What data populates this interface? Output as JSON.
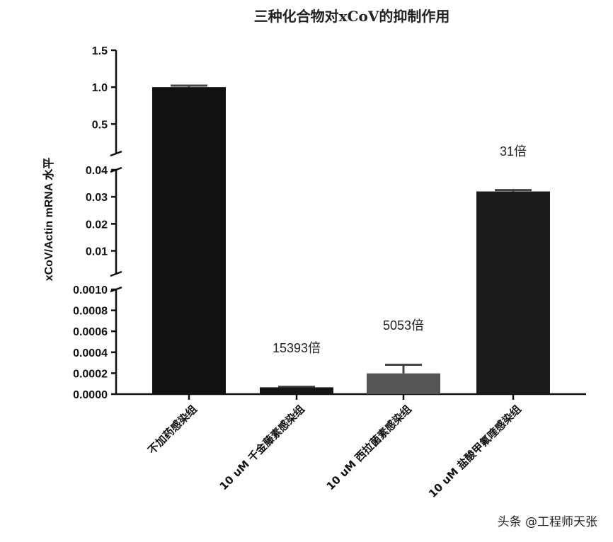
{
  "chart_data": {
    "type": "bar",
    "title": "三种化合物对xCoV的抑制作用",
    "ylabel": "xCoV/Actin mRNA 水平",
    "xlabel": "",
    "categories": [
      "不加药感染组",
      "10 uM 千金藤素感染组",
      "10 uM 西拉菌素感染组",
      "10 uM 盐酸甲氟喹感染组"
    ],
    "values": [
      1.0,
      6.5e-05,
      0.000198,
      0.032
    ],
    "error_upper": [
      1.02,
      7e-05,
      0.00028,
      0.0325
    ],
    "bar_colors": [
      "#111111",
      "#161616",
      "#555555",
      "#1c1c1c"
    ],
    "annotations": [
      "",
      "15393倍",
      "5053倍",
      "31倍"
    ],
    "axis_segments": [
      {
        "ylim": [
          0,
          0.001
        ],
        "ticks": [
          "0.0000",
          "0.0002",
          "0.0004",
          "0.0006",
          "0.0008",
          "0.0010"
        ],
        "tick_values": [
          0,
          0.0002,
          0.0004,
          0.0006,
          0.0008,
          0.001
        ]
      },
      {
        "ylim": [
          0.0015,
          0.04
        ],
        "ticks": [
          "0.01",
          "0.02",
          "0.03",
          "0.04"
        ],
        "tick_values": [
          0.01,
          0.02,
          0.03,
          0.04
        ]
      },
      {
        "ylim": [
          0.1,
          1.5
        ],
        "ticks": [
          "0.5",
          "1.0",
          "1.5"
        ],
        "tick_values": [
          0.5,
          1.0,
          1.5
        ]
      }
    ],
    "grid": false,
    "legend": "none"
  },
  "watermark": "头条 @工程师天张"
}
